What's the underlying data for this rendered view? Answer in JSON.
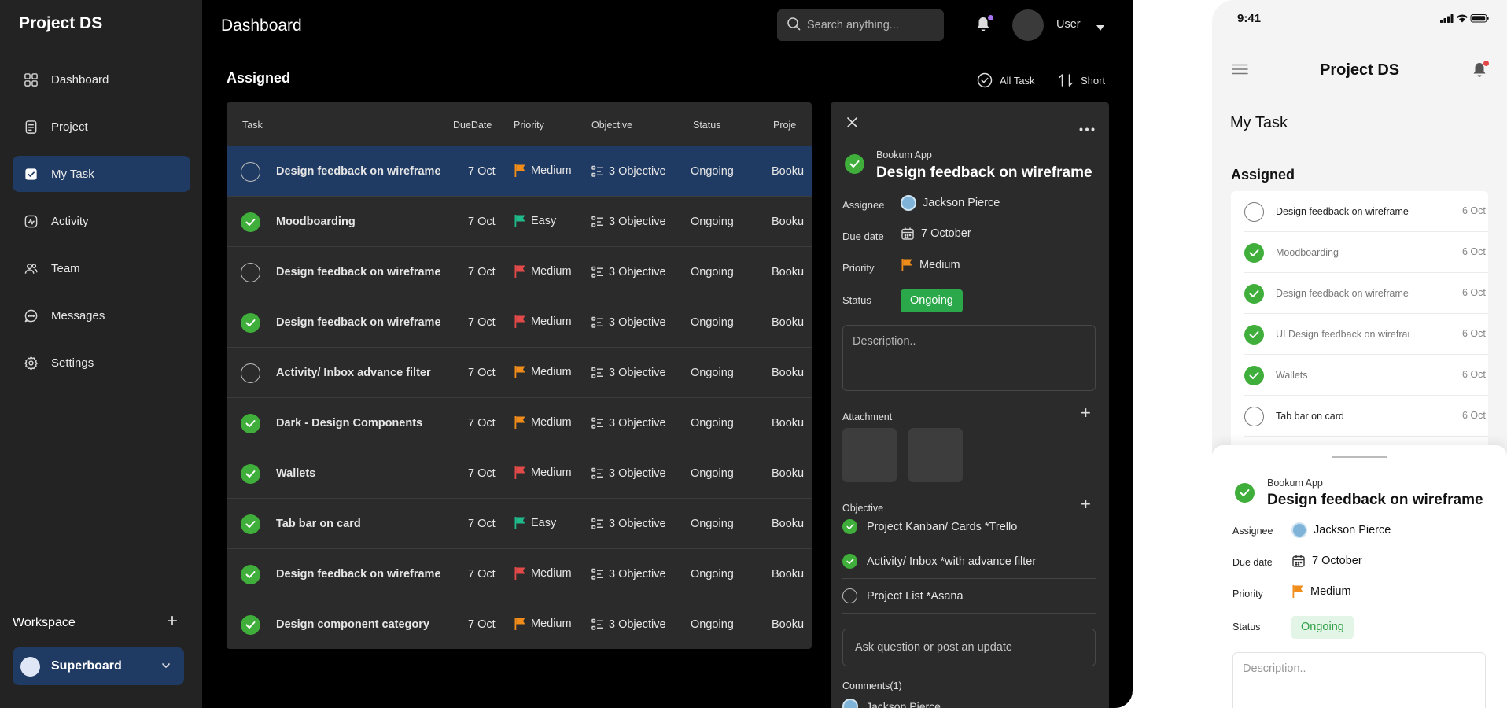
{
  "app": {
    "brand": "Project DS",
    "page_title": "Dashboard"
  },
  "sidebar": {
    "items": [
      {
        "label": "Dashboard",
        "icon": "grid-icon"
      },
      {
        "label": "Project",
        "icon": "document-icon"
      },
      {
        "label": "My Task",
        "icon": "checkbox-icon",
        "active": true
      },
      {
        "label": "Activity",
        "icon": "activity-icon"
      },
      {
        "label": "Team",
        "icon": "team-icon"
      },
      {
        "label": "Messages",
        "icon": "chat-icon"
      },
      {
        "label": "Settings",
        "icon": "gear-icon"
      }
    ],
    "workspace_label": "Workspace",
    "workspace_add": "+",
    "workspace_selected": "Superboard"
  },
  "header": {
    "search_placeholder": "Search anything...",
    "user_name": "User"
  },
  "assigned": {
    "title": "Assigned",
    "all_task_label": "All Task",
    "sort_label": "Short",
    "columns": [
      "Task",
      "DueDate",
      "Priority",
      "Objective",
      "Status",
      "Proje"
    ],
    "rows": [
      {
        "task": "Design feedback on wireframe",
        "done": false,
        "due": "7 Oct",
        "priority": "Medium",
        "flag": "#f08c1a",
        "objective": "3 Objective",
        "status": "Ongoing",
        "project": "Bookum App",
        "selected": true
      },
      {
        "task": "Moodboarding",
        "done": true,
        "due": "7 Oct",
        "priority": "Easy",
        "flag": "#1fb98a",
        "objective": "3 Objective",
        "status": "Ongoing",
        "project": "Bookum App"
      },
      {
        "task": "Design feedback on wireframe",
        "done": false,
        "due": "7 Oct",
        "priority": "Medium",
        "flag": "#e24a4a",
        "objective": "3 Objective",
        "status": "Ongoing",
        "project": "Bookum App"
      },
      {
        "task": "Design feedback on wireframe",
        "done": true,
        "due": "7 Oct",
        "priority": "Medium",
        "flag": "#e24a4a",
        "objective": "3 Objective",
        "status": "Ongoing",
        "project": "Bookum App"
      },
      {
        "task": "Activity/ Inbox advance filter",
        "done": false,
        "due": "7 Oct",
        "priority": "Medium",
        "flag": "#f08c1a",
        "objective": "3 Objective",
        "status": "Ongoing",
        "project": "Bookum App"
      },
      {
        "task": "Dark - Design Components",
        "done": true,
        "due": "7 Oct",
        "priority": "Medium",
        "flag": "#f08c1a",
        "objective": "3 Objective",
        "status": "Ongoing",
        "project": "Bookum App"
      },
      {
        "task": "Wallets",
        "done": true,
        "due": "7 Oct",
        "priority": "Medium",
        "flag": "#e24a4a",
        "objective": "3 Objective",
        "status": "Ongoing",
        "project": "Bookum App"
      },
      {
        "task": "Tab bar on card",
        "done": true,
        "due": "7 Oct",
        "priority": "Easy",
        "flag": "#1fb98a",
        "objective": "3 Objective",
        "status": "Ongoing",
        "project": "Bookum App"
      },
      {
        "task": "Design feedback on wireframe",
        "done": true,
        "due": "7 Oct",
        "priority": "Medium",
        "flag": "#e24a4a",
        "objective": "3 Objective",
        "status": "Ongoing",
        "project": "Bookum App"
      },
      {
        "task": "Design component category",
        "done": true,
        "due": "7 Oct",
        "priority": "Medium",
        "flag": "#f08c1a",
        "objective": "3 Objective",
        "status": "Ongoing",
        "project": "Bookum App"
      }
    ]
  },
  "detail": {
    "app": "Bookum App",
    "title": "Design feedback on wireframe",
    "assignee_label": "Assignee",
    "assignee": "Jackson Pierce",
    "due_label": "Due date",
    "due": "7 October",
    "priority_label": "Priority",
    "priority": "Medium",
    "status_label": "Status",
    "status": "Ongoing",
    "description_placeholder": "Description..",
    "attachment_label": "Attachment",
    "objective_label": "Objective",
    "objectives": [
      {
        "label": "Project Kanban/ Cards *Trello",
        "done": true
      },
      {
        "label": "Activity/ Inbox *with advance filter",
        "done": true
      },
      {
        "label": "Project List *Asana",
        "done": false
      }
    ],
    "ask_placeholder": "Ask question or post an update",
    "comments_label": "Comments(1)",
    "comment_author": "Jackson Pierce"
  },
  "mobile": {
    "time": "9:41",
    "brand": "Project DS",
    "my_task": "My Task",
    "assigned": "Assigned",
    "tasks": [
      {
        "task": "Design feedback on wireframe",
        "done": false,
        "date": "6 Oct"
      },
      {
        "task": "Moodboarding",
        "done": true,
        "date": "6 Oct"
      },
      {
        "task": "Design feedback on wireframe",
        "done": true,
        "date": "6 Oct"
      },
      {
        "task": "UI Design feedback on wireframe",
        "done": true,
        "date": "6 Oct"
      },
      {
        "task": "Wallets",
        "done": true,
        "date": "6 Oct"
      },
      {
        "task": "Tab bar on card",
        "done": false,
        "date": "6 Oct"
      }
    ],
    "sheet": {
      "app": "Bookum App",
      "title": "Design feedback on wireframe",
      "assignee_label": "Assignee",
      "assignee": "Jackson Pierce",
      "due_label": "Due date",
      "due": "7 October",
      "priority_label": "Priority",
      "priority": "Medium",
      "status_label": "Status",
      "status": "Ongoing",
      "description_placeholder": "Description.."
    }
  },
  "colors": {
    "accent": "#1f3a63",
    "done_green": "#3fae3a",
    "status_green": "#2aa84a",
    "flag_orange": "#f08c1a",
    "flag_red": "#e24a4a",
    "flag_teal": "#1fb98a"
  }
}
